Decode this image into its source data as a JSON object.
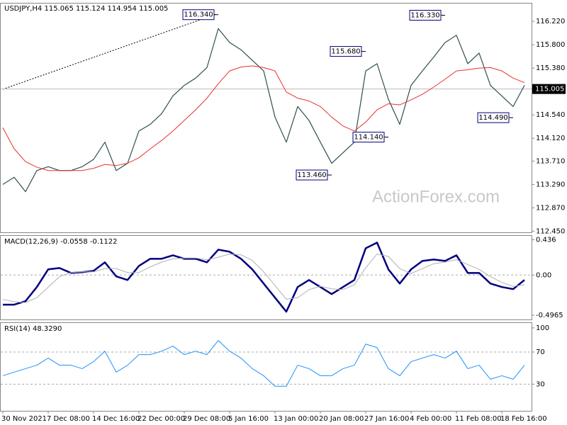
{
  "chart_data": [
    {
      "type": "line",
      "title": "USDJPY,H4 115.065 115.124 114.954 115.005",
      "watermark": "ActionForex.com",
      "categories": [
        "30 Nov 2021",
        null,
        null,
        null,
        "7 Dec 08:00",
        null,
        null,
        null,
        "14 Dec 16:00",
        null,
        null,
        null,
        "22 Dec 00:00",
        null,
        null,
        null,
        "29 Dec 08:00",
        null,
        null,
        null,
        "5 Jan 16:00",
        null,
        null,
        null,
        "13 Jan 00:00",
        null,
        null,
        null,
        "20 Jan 08:00",
        null,
        null,
        null,
        "27 Jan 16:00",
        null,
        null,
        null,
        "4 Feb 00:00",
        null,
        null,
        null,
        "11 Feb 08:00",
        null,
        null,
        null,
        "18 Feb 16:00",
        null,
        null
      ],
      "series": [
        {
          "color": "#2f4f4f",
          "values": [
            113.29,
            113.42,
            113.16,
            113.54,
            113.61,
            113.54,
            113.54,
            113.61,
            113.74,
            114.05,
            113.54,
            113.67,
            114.25,
            114.37,
            114.56,
            114.88,
            115.07,
            115.2,
            115.39,
            116.09,
            115.84,
            115.71,
            115.52,
            115.33,
            114.5,
            114.05,
            114.69,
            114.44,
            114.05,
            113.67,
            113.86,
            114.05,
            115.33,
            115.46,
            114.82,
            114.37,
            115.07,
            115.33,
            115.58,
            115.84,
            115.97,
            115.46,
            115.65,
            115.07,
            114.88,
            114.69,
            115.07
          ]
        },
        {
          "color": "#e8312f",
          "values": [
            114.31,
            113.93,
            113.7,
            113.6,
            113.54,
            113.54,
            113.54,
            113.54,
            113.58,
            113.65,
            113.63,
            113.67,
            113.77,
            113.93,
            114.08,
            114.25,
            114.44,
            114.63,
            114.84,
            115.1,
            115.33,
            115.4,
            115.42,
            115.39,
            115.33,
            114.95,
            114.84,
            114.79,
            114.69,
            114.5,
            114.34,
            114.25,
            114.41,
            114.63,
            114.74,
            114.72,
            114.81,
            114.91,
            115.04,
            115.18,
            115.33,
            115.35,
            115.38,
            115.39,
            115.33,
            115.2,
            115.12
          ]
        }
      ],
      "ylim": [
        112.43,
        116.54
      ],
      "yticks": [
        {
          "value": 116.22,
          "label": "116.220"
        },
        {
          "value": 115.8,
          "label": "115.800"
        },
        {
          "value": 115.38,
          "label": "115.380"
        },
        {
          "value": 114.54,
          "label": "114.540"
        },
        {
          "value": 114.12,
          "label": "114.120"
        },
        {
          "value": 113.71,
          "label": "113.710"
        },
        {
          "value": 113.29,
          "label": "113.290"
        },
        {
          "value": 112.87,
          "label": "112.870"
        },
        {
          "value": 112.45,
          "label": "112.450"
        }
      ],
      "current": {
        "value": 115.005,
        "label": "115.005"
      },
      "annotations": [
        {
          "at": 19,
          "value": 116.34,
          "label": "116.340"
        },
        {
          "at": 32,
          "value": 115.68,
          "label": "115.680"
        },
        {
          "at": 39,
          "value": 116.33,
          "label": "116.330"
        },
        {
          "at": 29,
          "value": 113.46,
          "label": "113.460"
        },
        {
          "at": 34,
          "value": 114.14,
          "label": "114.140"
        },
        {
          "at": 45,
          "value": 114.49,
          "label": "114.490"
        }
      ],
      "grid": false
    },
    {
      "type": "line",
      "title": "MACD(12,26,9) -0.0558 -0.1122",
      "series": [
        {
          "color": "#000080",
          "values": [
            -0.366,
            -0.366,
            -0.323,
            -0.148,
            0.07,
            0.087,
            0.026,
            0.035,
            0.052,
            0.157,
            -0.017,
            -0.061,
            0.113,
            0.201,
            0.201,
            0.244,
            0.201,
            0.201,
            0.157,
            0.314,
            0.288,
            0.201,
            0.07,
            -0.105,
            -0.279,
            -0.453,
            -0.148,
            -0.061,
            -0.148,
            -0.235,
            -0.148,
            -0.061,
            0.331,
            0.401,
            0.07,
            -0.105,
            0.07,
            0.174,
            0.192,
            0.174,
            0.244,
            0.026,
            0.026,
            -0.105,
            -0.148,
            -0.174,
            -0.061
          ]
        },
        {
          "color": "#b0b0b0",
          "values": [
            -0.3,
            -0.33,
            -0.34,
            -0.28,
            -0.15,
            -0.02,
            0.03,
            0.04,
            0.04,
            0.08,
            0.08,
            0.03,
            0.03,
            0.1,
            0.16,
            0.2,
            0.21,
            0.21,
            0.19,
            0.22,
            0.26,
            0.25,
            0.18,
            0.04,
            -0.13,
            -0.3,
            -0.28,
            -0.18,
            -0.14,
            -0.17,
            -0.18,
            -0.12,
            0.09,
            0.26,
            0.23,
            0.08,
            0.02,
            0.08,
            0.14,
            0.16,
            0.19,
            0.13,
            0.07,
            -0.02,
            -0.09,
            -0.14,
            -0.12
          ]
        }
      ],
      "ylim": [
        -0.549,
        0.484
      ],
      "yticks": [
        0.436,
        {
          "value": 0,
          "label": "0.00"
        },
        -0.4965
      ],
      "levels": [
        0
      ],
      "grid": false
    },
    {
      "type": "line",
      "title": "RSI(14) 48.3290",
      "series": [
        {
          "color": "#1e90ff",
          "values": [
            40.5,
            44.9,
            49.3,
            53.6,
            62.4,
            53.6,
            53.6,
            49.3,
            58.0,
            71.1,
            44.9,
            53.6,
            66.8,
            66.8,
            71.1,
            77.3,
            66.8,
            71.1,
            66.8,
            84.3,
            71.1,
            62.4,
            49.3,
            40.5,
            27.4,
            27.4,
            53.6,
            49.3,
            40.5,
            40.5,
            49.3,
            53.6,
            79.9,
            75.5,
            49.3,
            40.5,
            58.0,
            62.4,
            66.8,
            62.4,
            71.1,
            49.3,
            53.6,
            36.1,
            40.5,
            36.1,
            53.6
          ]
        }
      ],
      "ylim": [
        -3.2,
        106.1
      ],
      "yticks": [
        100,
        70,
        30
      ],
      "levels": [
        70,
        30
      ],
      "grid": false
    }
  ]
}
